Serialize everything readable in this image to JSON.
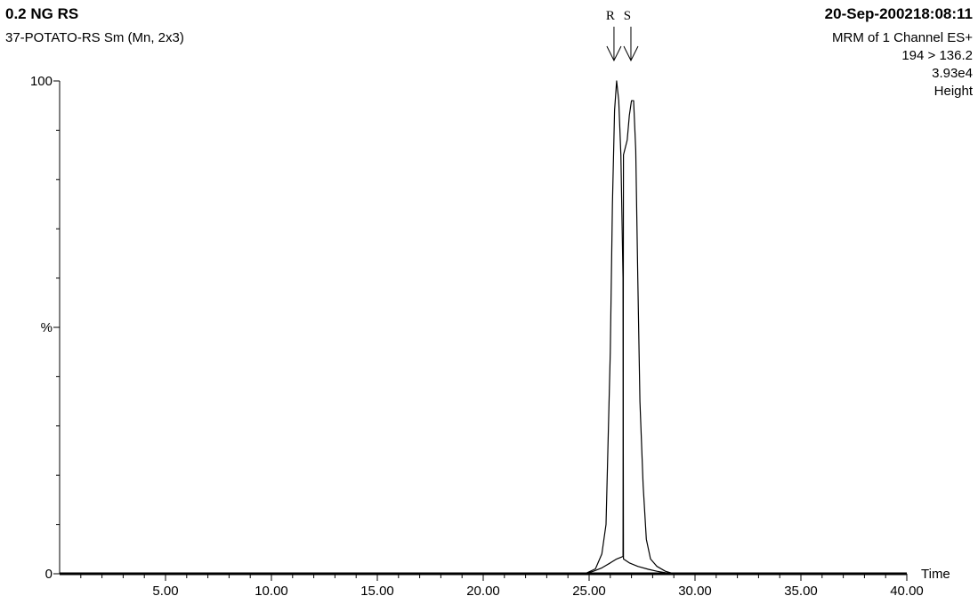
{
  "header": {
    "sample_name": "0.2 NG RS",
    "sample_description": "37-POTATO-RS Sm (Mn, 2x3)",
    "datetime": "20-Sep-200218:08:11",
    "channel_info": "MRM of 1 Channel ES+",
    "transition": "194 > 136.2",
    "intensity": "3.93e4",
    "mode": "Height"
  },
  "chart_data": {
    "type": "line",
    "xlabel": "Time",
    "ylabel": "%",
    "xlim": [
      0,
      40
    ],
    "ylim": [
      0,
      100
    ],
    "x_tick_labels": [
      "5.00",
      "10.00",
      "15.00",
      "20.00",
      "25.00",
      "30.00",
      "35.00",
      "40.00"
    ],
    "y_tick_labels": [
      "0",
      "%",
      "100"
    ],
    "line_color": "#000000",
    "grid": false,
    "peaks": [
      {
        "label": "R",
        "apex_time": 26.3,
        "apex_height": 100,
        "points": [
          [
            24.8,
            0
          ],
          [
            25.3,
            1
          ],
          [
            25.6,
            4
          ],
          [
            25.8,
            10
          ],
          [
            26.0,
            45
          ],
          [
            26.1,
            75
          ],
          [
            26.2,
            94
          ],
          [
            26.3,
            100
          ],
          [
            26.4,
            96
          ],
          [
            26.5,
            85
          ],
          [
            26.6,
            60
          ],
          [
            26.62,
            3
          ],
          [
            26.9,
            2.2
          ],
          [
            27.3,
            1.5
          ],
          [
            27.8,
            0.9
          ],
          [
            28.2,
            0.5
          ],
          [
            28.6,
            0.2
          ],
          [
            29.0,
            0
          ]
        ]
      },
      {
        "label": "S",
        "apex_time": 27.1,
        "apex_height": 96,
        "points": [
          [
            24.8,
            0
          ],
          [
            25.2,
            0.5
          ],
          [
            25.6,
            1.2
          ],
          [
            26.0,
            2.2
          ],
          [
            26.3,
            3
          ],
          [
            26.6,
            3.5
          ],
          [
            26.62,
            85
          ],
          [
            26.8,
            88
          ],
          [
            26.9,
            93
          ],
          [
            27.0,
            96
          ],
          [
            27.1,
            96
          ],
          [
            27.2,
            86
          ],
          [
            27.3,
            60
          ],
          [
            27.4,
            35
          ],
          [
            27.55,
            18
          ],
          [
            27.7,
            7
          ],
          [
            27.9,
            3
          ],
          [
            28.2,
            1.5
          ],
          [
            28.6,
            0.5
          ],
          [
            29.0,
            0
          ]
        ]
      }
    ]
  }
}
